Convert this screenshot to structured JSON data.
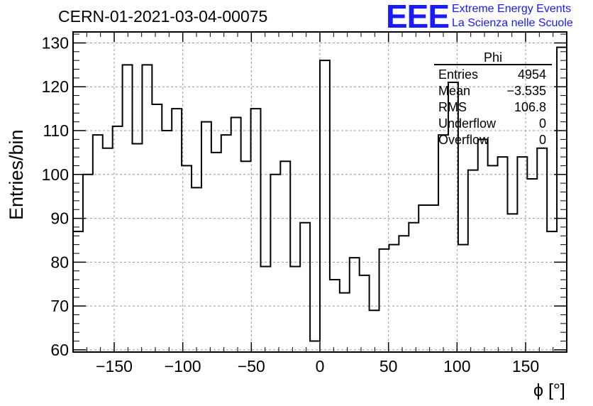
{
  "header": {
    "run_title": "CERN-01-2021-03-04-00075",
    "logo_text": "EEE",
    "logo_line1": "Extreme Energy Events",
    "logo_line2": "La Scienza nelle Scuole",
    "logo_color": "#1a1aff"
  },
  "stats_box": {
    "title": "Phi",
    "rows": [
      {
        "label": "Entries",
        "value": "4954"
      },
      {
        "label": "Mean",
        "value": "−3.535"
      },
      {
        "label": "RMS",
        "value": "106.8"
      },
      {
        "label": "Underflow",
        "value": "0"
      },
      {
        "label": "Overflow",
        "value": "0"
      }
    ]
  },
  "chart_data": {
    "type": "bar",
    "histogram": true,
    "xlabel": "ϕ [°]",
    "ylabel": "Entries/bin",
    "xlim": [
      -180,
      180
    ],
    "ylim": [
      59.5,
      132.5
    ],
    "bin_width": 7.2,
    "xticks": [
      -150,
      -100,
      -50,
      0,
      50,
      100,
      150
    ],
    "yticks": [
      60,
      70,
      80,
      90,
      100,
      110,
      120,
      130
    ],
    "xtick_labels": [
      "−150",
      "−100",
      "−50",
      "0",
      "50",
      "100",
      "150"
    ],
    "ytick_labels": [
      "60",
      "70",
      "80",
      "90",
      "100",
      "110",
      "120",
      "130"
    ],
    "grid": true,
    "line_color": "#000000",
    "grid_color": "#999999",
    "values": [
      87,
      100,
      109,
      106,
      111,
      125,
      107,
      125,
      116,
      110,
      115,
      102,
      97,
      112,
      105,
      109,
      113,
      103,
      115,
      79,
      100,
      103,
      79,
      89,
      62,
      126,
      76,
      73,
      81,
      77,
      69,
      83,
      84,
      86,
      89,
      93,
      93,
      109,
      121,
      84,
      101,
      108,
      102,
      104,
      91,
      104,
      99,
      106,
      87,
      129
    ]
  }
}
